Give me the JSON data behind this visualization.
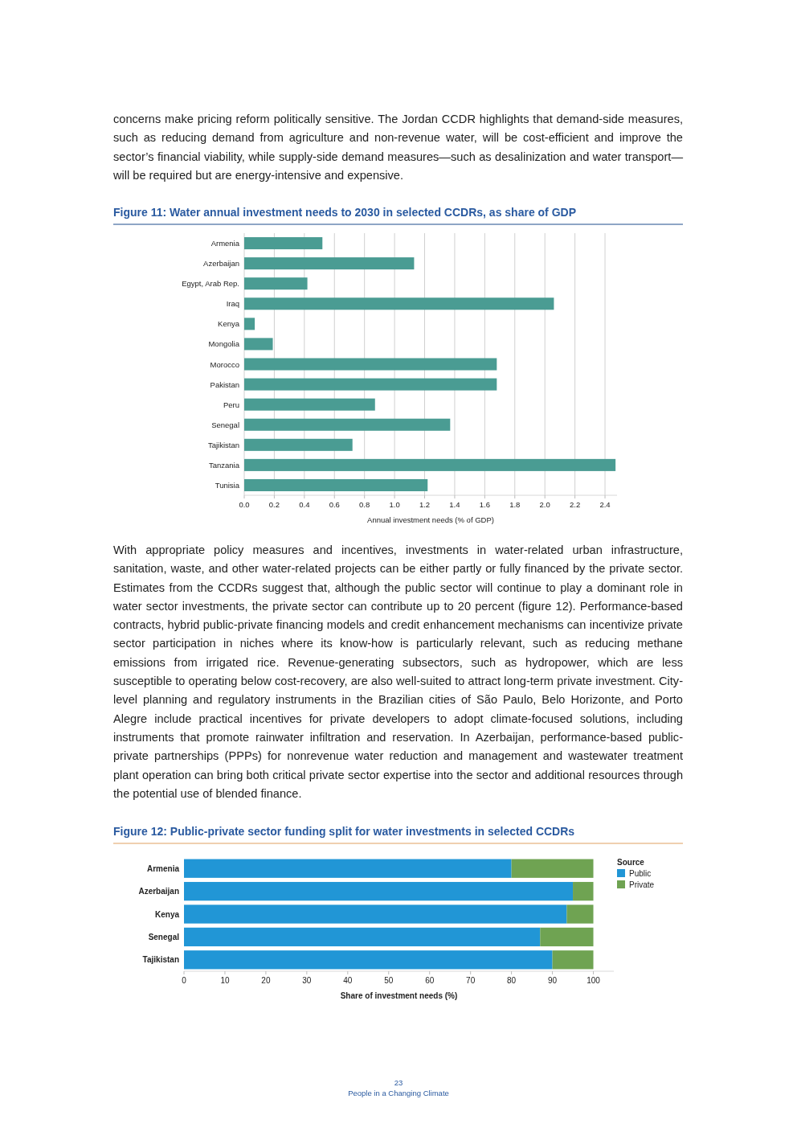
{
  "chart_data": [
    {
      "type": "bar",
      "orientation": "horizontal",
      "title": "Figure 11: Water annual investment needs to 2030 in selected CCDRs, as share of GDP",
      "xlabel": "Annual investment needs (% of GDP)",
      "categories": [
        "Armenia",
        "Azerbaijan",
        "Egypt, Arab Rep.",
        "Iraq",
        "Kenya",
        "Mongolia",
        "Morocco",
        "Pakistan",
        "Peru",
        "Senegal",
        "Tajikistan",
        "Tanzania",
        "Tunisia"
      ],
      "series": [
        {
          "color": "#4a9c93",
          "values": [
            0.52,
            1.13,
            0.42,
            2.06,
            0.07,
            0.19,
            1.68,
            1.68,
            0.87,
            1.37,
            0.72,
            2.47,
            1.22
          ]
        }
      ],
      "xlim": [
        0,
        2.48
      ],
      "xticks": [
        {
          "value": 0,
          "label": "0.0"
        },
        0.2,
        0.4,
        0.6,
        0.8,
        {
          "value": 1,
          "label": "1.0"
        },
        1.2,
        1.4,
        1.6,
        1.8,
        {
          "value": 2,
          "label": "2.0"
        },
        2.2,
        2.4
      ],
      "grid": "x",
      "legend": false,
      "annotations": [
        "concerns make pricing reform politically sensitive. The Jordan CCDR highlights that demand-side measures, such as reducing demand from agriculture and non-revenue water, will be cost-efficient and improve the sector’s financial viability, while supply-side demand measures—such as desalinization and water transport—will be required but are energy-intensive and expensive."
      ]
    },
    {
      "type": "bar",
      "orientation": "horizontal",
      "stacked": true,
      "title": "Figure 12: Public-private sector funding split for water investments in selected CCDRs",
      "xlabel": "Share of investment needs (%)",
      "legend_title": "Source",
      "legend": "right",
      "categories": [
        "Armenia",
        "Azerbaijan",
        "Kenya",
        "Senegal",
        "Tajikistan"
      ],
      "series": [
        {
          "name": "Public",
          "color": "#2196d6",
          "values": [
            80,
            95,
            93.5,
            87,
            90
          ]
        },
        {
          "name": "Private",
          "color": "#6fa352",
          "values": [
            20,
            5,
            6.5,
            13,
            10
          ]
        }
      ],
      "xlim": [
        0,
        105
      ],
      "xticks": [
        0,
        10,
        20,
        30,
        40,
        50,
        60,
        70,
        80,
        90,
        100
      ],
      "annotations": [
        "With appropriate policy measures and incentives, investments in water-related urban infrastructure, sanitation, waste, and other water-related projects can be either partly or fully financed by the private sector. Estimates from the CCDRs suggest that, although the public sector will continue to play a dominant role in water sector investments, the private sector can contribute up to 20 percent (figure 12). Performance-based contracts, hybrid public-private financing models and credit enhancement mechanisms can incentivize private sector participation in niches where its know-how is particularly relevant, such as reducing methane emissions from irrigated rice. Revenue-generating subsectors, such as hydropower, which are less susceptible to operating below cost-recovery, are also well-suited to attract long-term private investment. City-level planning and regulatory instruments in the Brazilian cities of São Paulo, Belo Horizonte, and Porto Alegre include practical incentives for private developers to adopt climate-focused solutions, including instruments that promote rainwater infiltration and reservation. In Azerbaijan, performance-based public-private partnerships (PPPs) for nonrevenue water reduction and management and wastewater treatment plant operation can bring both critical private sector expertise into the sector and additional resources through the potential use of blended finance.",
        "23",
        "People in a Changing Climate"
      ]
    }
  ]
}
